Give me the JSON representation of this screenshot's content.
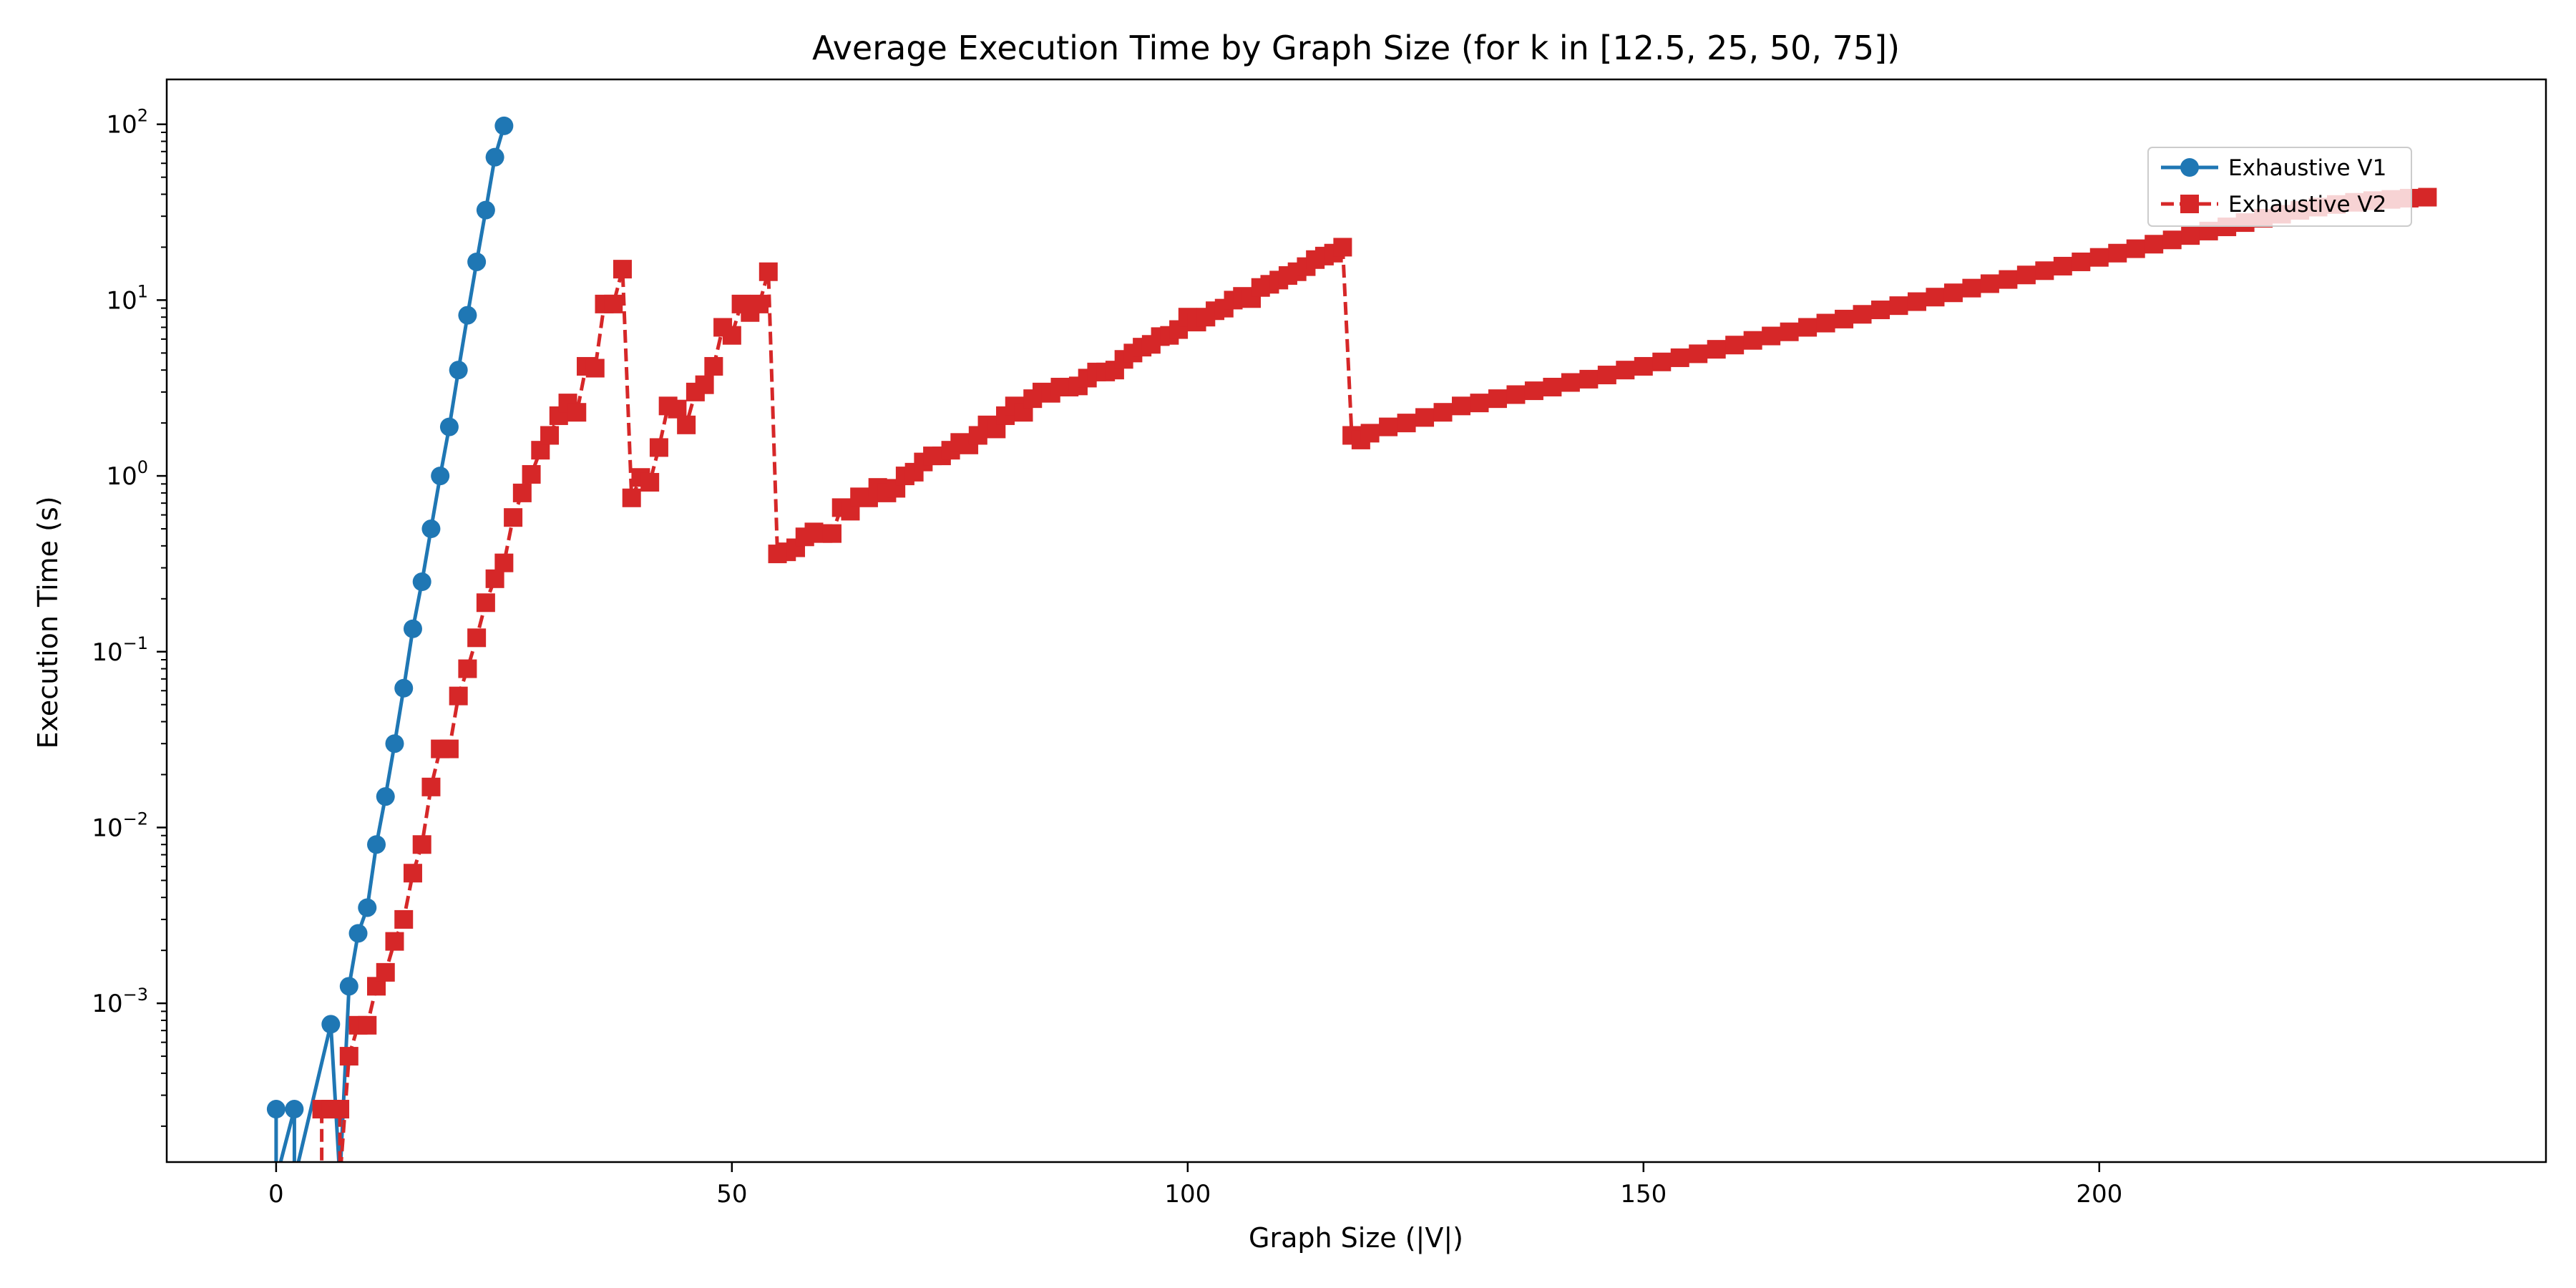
{
  "chart_data": {
    "type": "line",
    "title": "Average Execution Time by Graph Size (for k in [12.5, 25, 50, 75])",
    "xlabel": "Graph Size (|V|)",
    "ylabel": "Execution Time (s)",
    "xscale": "linear",
    "yscale": "log",
    "xlim": [
      -12,
      249
    ],
    "ylim": [
      0.000125,
      180
    ],
    "xticks": [
      0,
      50,
      100,
      150,
      200
    ],
    "xtick_labels": [
      "0",
      "50",
      "100",
      "150",
      "200"
    ],
    "yticks": [
      0.001,
      0.01,
      0.1,
      1,
      10,
      100
    ],
    "ytick_labels": [
      {
        "base": "10",
        "exp": "−3"
      },
      {
        "base": "10",
        "exp": "−2"
      },
      {
        "base": "10",
        "exp": "−1"
      },
      {
        "base": "10",
        "exp": "0"
      },
      {
        "base": "10",
        "exp": "1"
      },
      {
        "base": "10",
        "exp": "2"
      }
    ],
    "grid": false,
    "legend_position": "upper right",
    "series": [
      {
        "name": "Exhaustive V1",
        "color": "#1f77b4",
        "linestyle": "solid",
        "marker": "circle",
        "points": [
          [
            0,
            0.00025
          ],
          [
            0,
            0.0001
          ],
          [
            2,
            0.00025
          ],
          [
            2,
            0.0001
          ],
          [
            6,
            0.00076
          ],
          [
            7,
            0.0001
          ],
          [
            8,
            0.00125
          ],
          [
            9,
            0.0025
          ],
          [
            10,
            0.0035
          ],
          [
            11,
            0.008
          ],
          [
            12,
            0.015
          ],
          [
            13,
            0.03
          ],
          [
            14,
            0.062
          ],
          [
            15,
            0.135
          ],
          [
            16,
            0.25
          ],
          [
            17,
            0.5
          ],
          [
            18,
            1.0
          ],
          [
            19,
            1.9
          ],
          [
            20,
            4.0
          ],
          [
            21,
            8.2
          ],
          [
            22,
            16.5
          ],
          [
            23,
            32.5
          ],
          [
            24,
            65
          ],
          [
            25,
            98
          ]
        ]
      },
      {
        "name": "Exhaustive V2",
        "color": "#d62728",
        "linestyle": "dashed",
        "marker": "square",
        "points": [
          [
            5,
            0.0001
          ],
          [
            5,
            0.00025
          ],
          [
            6,
            0.00025
          ],
          [
            7,
            0.00025
          ],
          [
            7,
            0.0001
          ],
          [
            8,
            0.0005
          ],
          [
            9,
            0.00075
          ],
          [
            10,
            0.00075
          ],
          [
            11,
            0.00125
          ],
          [
            12,
            0.0015
          ],
          [
            13,
            0.00225
          ],
          [
            14,
            0.003
          ],
          [
            15,
            0.0055
          ],
          [
            16,
            0.008
          ],
          [
            17,
            0.017
          ],
          [
            18,
            0.028
          ],
          [
            19,
            0.028
          ],
          [
            20,
            0.056
          ],
          [
            21,
            0.08
          ],
          [
            22,
            0.12
          ],
          [
            23,
            0.19
          ],
          [
            24,
            0.26
          ],
          [
            25,
            0.32
          ],
          [
            26,
            0.58
          ],
          [
            27,
            0.8
          ],
          [
            28,
            1.02
          ],
          [
            29,
            1.4
          ],
          [
            30,
            1.7
          ],
          [
            31,
            2.2
          ],
          [
            32,
            2.6
          ],
          [
            33,
            2.3
          ],
          [
            34,
            4.2
          ],
          [
            35,
            4.1
          ],
          [
            36,
            9.5
          ],
          [
            37,
            9.5
          ],
          [
            38,
            15
          ],
          [
            39,
            0.75
          ],
          [
            40,
            0.98
          ],
          [
            41,
            0.92
          ],
          [
            42,
            1.45
          ],
          [
            43,
            2.5
          ],
          [
            44,
            2.4
          ],
          [
            45,
            1.95
          ],
          [
            46,
            3.0
          ],
          [
            47,
            3.3
          ],
          [
            48,
            4.2
          ],
          [
            49,
            7.0
          ],
          [
            50,
            6.3
          ],
          [
            51,
            9.5
          ],
          [
            52,
            8.5
          ],
          [
            53,
            9.5
          ],
          [
            54,
            14.5
          ],
          [
            55,
            0.36
          ],
          [
            56,
            0.37
          ],
          [
            57,
            0.39
          ],
          [
            58,
            0.45
          ],
          [
            59,
            0.48
          ],
          [
            60,
            0.47
          ],
          [
            61,
            0.47
          ],
          [
            62,
            0.66
          ],
          [
            63,
            0.63
          ],
          [
            64,
            0.76
          ],
          [
            65,
            0.75
          ],
          [
            66,
            0.86
          ],
          [
            67,
            0.8
          ],
          [
            68,
            0.85
          ],
          [
            69,
            1.0
          ],
          [
            70,
            1.05
          ],
          [
            71,
            1.2
          ],
          [
            72,
            1.3
          ],
          [
            73,
            1.3
          ],
          [
            74,
            1.4
          ],
          [
            75,
            1.55
          ],
          [
            76,
            1.5
          ],
          [
            77,
            1.7
          ],
          [
            78,
            1.95
          ],
          [
            79,
            1.85
          ],
          [
            80,
            2.2
          ],
          [
            81,
            2.5
          ],
          [
            82,
            2.3
          ],
          [
            83,
            2.75
          ],
          [
            84,
            3.0
          ],
          [
            85,
            2.95
          ],
          [
            86,
            3.2
          ],
          [
            87,
            3.2
          ],
          [
            88,
            3.25
          ],
          [
            89,
            3.6
          ],
          [
            90,
            3.9
          ],
          [
            91,
            3.9
          ],
          [
            92,
            4.0
          ],
          [
            93,
            4.6
          ],
          [
            94,
            5.0
          ],
          [
            95,
            5.4
          ],
          [
            96,
            5.6
          ],
          [
            97,
            6.2
          ],
          [
            98,
            6.3
          ],
          [
            99,
            6.8
          ],
          [
            100,
            8.0
          ],
          [
            101,
            7.5
          ],
          [
            102,
            8.0
          ],
          [
            103,
            8.7
          ],
          [
            104,
            9.0
          ],
          [
            105,
            10.0
          ],
          [
            106,
            10.5
          ],
          [
            107,
            10.2
          ],
          [
            108,
            11.8
          ],
          [
            109,
            12.3
          ],
          [
            110,
            13.0
          ],
          [
            111,
            13.8
          ],
          [
            112,
            14.5
          ],
          [
            113,
            15.5
          ],
          [
            114,
            17.0
          ],
          [
            115,
            17.8
          ],
          [
            116,
            18.5
          ],
          [
            117,
            20
          ],
          [
            118,
            1.7
          ],
          [
            119,
            1.6
          ],
          [
            120,
            1.75
          ],
          [
            122,
            1.9
          ],
          [
            124,
            2.0
          ],
          [
            126,
            2.15
          ],
          [
            128,
            2.3
          ],
          [
            130,
            2.5
          ],
          [
            132,
            2.6
          ],
          [
            134,
            2.75
          ],
          [
            136,
            2.9
          ],
          [
            138,
            3.05
          ],
          [
            140,
            3.2
          ],
          [
            142,
            3.4
          ],
          [
            144,
            3.55
          ],
          [
            146,
            3.75
          ],
          [
            148,
            4.0
          ],
          [
            150,
            4.2
          ],
          [
            152,
            4.45
          ],
          [
            154,
            4.7
          ],
          [
            156,
            4.95
          ],
          [
            158,
            5.25
          ],
          [
            160,
            5.55
          ],
          [
            162,
            5.9
          ],
          [
            164,
            6.25
          ],
          [
            166,
            6.6
          ],
          [
            168,
            7.0
          ],
          [
            170,
            7.4
          ],
          [
            172,
            7.8
          ],
          [
            174,
            8.3
          ],
          [
            176,
            8.8
          ],
          [
            178,
            9.3
          ],
          [
            180,
            9.8
          ],
          [
            182,
            10.4
          ],
          [
            184,
            11.0
          ],
          [
            186,
            11.7
          ],
          [
            188,
            12.4
          ],
          [
            190,
            13.1
          ],
          [
            192,
            13.9
          ],
          [
            194,
            14.7
          ],
          [
            196,
            15.6
          ],
          [
            198,
            16.5
          ],
          [
            200,
            17.5
          ],
          [
            202,
            18.5
          ],
          [
            204,
            19.6
          ],
          [
            206,
            20.8
          ],
          [
            208,
            22.0
          ],
          [
            210,
            23.3
          ],
          [
            212,
            24.7
          ],
          [
            214,
            26.1
          ],
          [
            216,
            27.6
          ],
          [
            218,
            29.2
          ],
          [
            220,
            30.8
          ],
          [
            222,
            32.4
          ],
          [
            224,
            33.8
          ],
          [
            226,
            35.0
          ],
          [
            228,
            36.0
          ],
          [
            230,
            36.8
          ],
          [
            232,
            37.4
          ],
          [
            234,
            38.0
          ],
          [
            236,
            38.5
          ]
        ]
      }
    ]
  }
}
